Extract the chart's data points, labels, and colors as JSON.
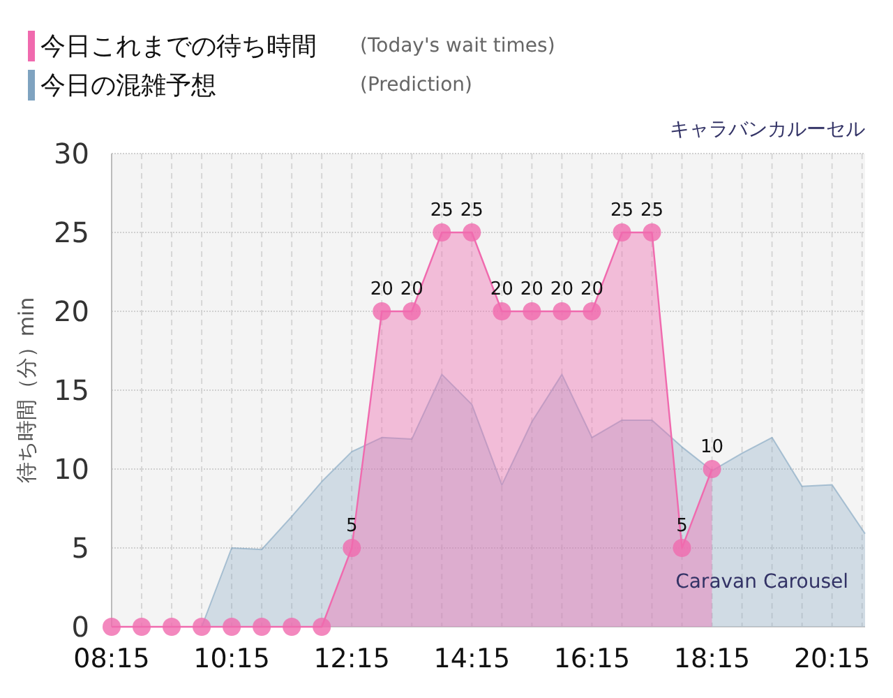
{
  "chart_data": {
    "type": "area",
    "title": "キャラバンカルーセル",
    "subtitle": "Caravan Carousel",
    "ylabel": "待ち時間（分）min",
    "annotations": [
      "(Today's wait times)",
      "(Prediction)"
    ],
    "series": [
      {
        "name": "今日これまでの待ち時間",
        "color": "#f06aae",
        "marker": "circle",
        "x": [
          8.25,
          8.75,
          9.25,
          9.75,
          10.25,
          10.75,
          11.25,
          11.75,
          12.25,
          12.75,
          13.25,
          13.75,
          14.25,
          14.75,
          15.25,
          15.75,
          16.25,
          16.75,
          17.25,
          17.75,
          18.25
        ],
        "values": [
          0,
          0,
          0,
          0,
          0,
          0,
          0,
          0,
          5,
          20,
          20,
          25,
          25,
          20,
          20,
          20,
          20,
          25,
          25,
          5,
          10
        ],
        "value_labels": [
          null,
          null,
          null,
          null,
          null,
          null,
          null,
          null,
          "5",
          "20",
          "20",
          "25",
          "25",
          "20",
          "20",
          "20",
          "20",
          "25",
          "25",
          "5",
          "10"
        ]
      },
      {
        "name": "今日の混雑予想",
        "color": "#7fa3c0",
        "marker": "none",
        "x": [
          8.25,
          8.75,
          9.25,
          9.75,
          10.25,
          10.75,
          11.25,
          11.75,
          12.25,
          12.75,
          13.25,
          13.75,
          14.25,
          14.75,
          15.25,
          15.75,
          16.25,
          16.75,
          17.25,
          17.75,
          18.25,
          18.75,
          19.25,
          19.75,
          20.25,
          20.8
        ],
        "values": [
          0,
          0,
          0,
          0,
          5,
          4.9,
          7,
          9.2,
          11.1,
          12,
          11.9,
          16,
          14.1,
          9,
          13,
          16,
          12,
          13.1,
          13.1,
          11.4,
          9.9,
          11,
          12,
          8.9,
          9,
          5.9
        ]
      }
    ],
    "xlim": [
      8.25,
      20.8
    ],
    "ylim": [
      0,
      30
    ],
    "xticks": [
      {
        "value": 8.25,
        "label": "08:15"
      },
      {
        "value": 8.75,
        "label": null
      },
      {
        "value": 9.25,
        "label": null
      },
      {
        "value": 9.75,
        "label": null
      },
      {
        "value": 10.25,
        "label": "10:15"
      },
      {
        "value": 10.75,
        "label": null
      },
      {
        "value": 11.25,
        "label": null
      },
      {
        "value": 11.75,
        "label": null
      },
      {
        "value": 12.25,
        "label": "12:15"
      },
      {
        "value": 12.75,
        "label": null
      },
      {
        "value": 13.25,
        "label": null
      },
      {
        "value": 13.75,
        "label": null
      },
      {
        "value": 14.25,
        "label": "14:15"
      },
      {
        "value": 14.75,
        "label": null
      },
      {
        "value": 15.25,
        "label": null
      },
      {
        "value": 15.75,
        "label": null
      },
      {
        "value": 16.25,
        "label": "16:15"
      },
      {
        "value": 16.75,
        "label": null
      },
      {
        "value": 17.25,
        "label": null
      },
      {
        "value": 17.75,
        "label": null
      },
      {
        "value": 18.25,
        "label": "18:15"
      },
      {
        "value": 18.75,
        "label": null
      },
      {
        "value": 19.25,
        "label": null
      },
      {
        "value": 19.75,
        "label": null
      },
      {
        "value": 20.25,
        "label": "20:15"
      },
      {
        "value": 20.75,
        "label": null
      }
    ],
    "yticks": [
      0,
      5,
      10,
      15,
      20,
      25,
      30
    ],
    "grid": true,
    "legend": "top left"
  }
}
